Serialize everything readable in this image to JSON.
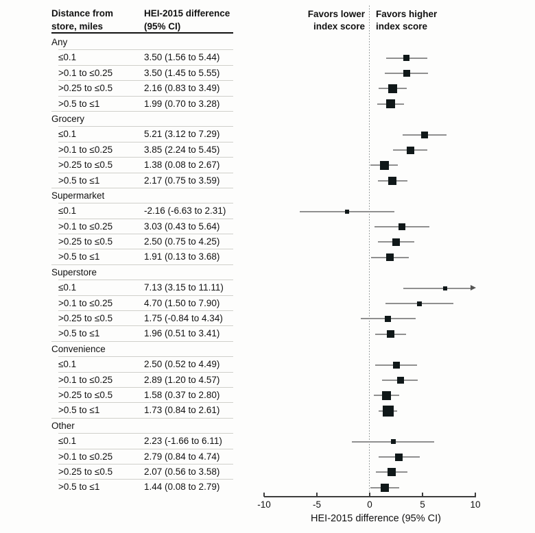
{
  "figure": {
    "col1_header": "Distance from store, miles",
    "col2_header": "HEI-2015 difference (95% CI)",
    "favors_lower": "Favors lower index score",
    "favors_higher": "Favors higher index score",
    "axis_label": "HEI-2015 difference (95% CI)"
  },
  "colors": {
    "marker": "#101819",
    "ci_line": "#8f8f8f",
    "rule_light": "#cfcfca",
    "rule_dark": "#111111",
    "axis": "#3c3c3c",
    "zero_line": "#9aa0a0"
  },
  "chart_data": {
    "type": "scatter",
    "variant": "forest-plot",
    "title": "",
    "xlabel": "HEI-2015 difference (95% CI)",
    "xlim": [
      -10,
      10
    ],
    "xticks": [
      -10,
      -5,
      0,
      5,
      10
    ],
    "grid": false,
    "zero_reference_line": 0,
    "annotations": {
      "left_of_zero": "Favors lower index score",
      "right_of_zero": "Favors higher index score"
    },
    "groups": [
      {
        "label": "Any",
        "rows": [
          {
            "label": "≤0.1",
            "text": "3.50 (1.56 to 5.44)",
            "est": 3.5,
            "lo": 1.56,
            "hi": 5.44,
            "size": 9
          },
          {
            "label": ">0.1 to ≤0.25",
            "text": "3.50 (1.45 to 5.55)",
            "est": 3.5,
            "lo": 1.45,
            "hi": 5.55,
            "size": 10
          },
          {
            "label": ">0.25 to ≤0.5",
            "text": "2.16 (0.83 to 3.49)",
            "est": 2.16,
            "lo": 0.83,
            "hi": 3.49,
            "size": 13
          },
          {
            "label": ">0.5 to ≤1",
            "text": "1.99 (0.70 to 3.28)",
            "est": 1.99,
            "lo": 0.7,
            "hi": 3.28,
            "size": 13
          }
        ]
      },
      {
        "label": "Grocery",
        "rows": [
          {
            "label": "≤0.1",
            "text": "5.21 (3.12 to 7.29)",
            "est": 5.21,
            "lo": 3.12,
            "hi": 7.29,
            "size": 10
          },
          {
            "label": ">0.1 to ≤0.25",
            "text": "3.85 (2.24 to 5.45)",
            "est": 3.85,
            "lo": 2.24,
            "hi": 5.45,
            "size": 11
          },
          {
            "label": ">0.25 to ≤0.5",
            "text": "1.38 (0.08 to 2.67)",
            "est": 1.38,
            "lo": 0.08,
            "hi": 2.67,
            "size": 13
          },
          {
            "label": ">0.5 to ≤1",
            "text": "2.17 (0.75 to 3.59)",
            "est": 2.17,
            "lo": 0.75,
            "hi": 3.59,
            "size": 12
          }
        ]
      },
      {
        "label": "Supermarket",
        "rows": [
          {
            "label": "≤0.1",
            "text": "-2.16 (-6.63 to 2.31)",
            "est": -2.16,
            "lo": -6.63,
            "hi": 2.31,
            "size": 6
          },
          {
            "label": ">0.1 to ≤0.25",
            "text": "3.03 (0.43 to 5.64)",
            "est": 3.03,
            "lo": 0.43,
            "hi": 5.64,
            "size": 10
          },
          {
            "label": ">0.25 to ≤0.5",
            "text": "2.50 (0.75 to 4.25)",
            "est": 2.5,
            "lo": 0.75,
            "hi": 4.25,
            "size": 11
          },
          {
            "label": ">0.5 to ≤1",
            "text": "1.91 (0.13 to 3.68)",
            "est": 1.91,
            "lo": 0.13,
            "hi": 3.68,
            "size": 11
          }
        ]
      },
      {
        "label": "Superstore",
        "rows": [
          {
            "label": "≤0.1",
            "text": "7.13 (3.15 to 11.11)",
            "est": 7.13,
            "lo": 3.15,
            "hi": 11.11,
            "size": 6,
            "clip_hi": true
          },
          {
            "label": ">0.1 to ≤0.25",
            "text": "4.70 (1.50 to 7.90)",
            "est": 4.7,
            "lo": 1.5,
            "hi": 7.9,
            "size": 7
          },
          {
            "label": ">0.25 to ≤0.5",
            "text": "1.75 (-0.84 to 4.34)",
            "est": 1.75,
            "lo": -0.84,
            "hi": 4.34,
            "size": 9
          },
          {
            "label": ">0.5 to ≤1",
            "text": "1.96 (0.51 to 3.41)",
            "est": 1.96,
            "lo": 0.51,
            "hi": 3.41,
            "size": 11
          }
        ]
      },
      {
        "label": "Convenience",
        "rows": [
          {
            "label": "≤0.1",
            "text": "2.50 (0.52 to 4.49)",
            "est": 2.5,
            "lo": 0.52,
            "hi": 4.49,
            "size": 10
          },
          {
            "label": ">0.1 to ≤0.25",
            "text": "2.89 (1.20 to 4.57)",
            "est": 2.89,
            "lo": 1.2,
            "hi": 4.57,
            "size": 10
          },
          {
            "label": ">0.25 to ≤0.5",
            "text": "1.58 (0.37 to 2.80)",
            "est": 1.58,
            "lo": 0.37,
            "hi": 2.8,
            "size": 13
          },
          {
            "label": ">0.5 to ≤1",
            "text": "1.73 (0.84 to 2.61)",
            "est": 1.73,
            "lo": 0.84,
            "hi": 2.61,
            "size": 16
          }
        ]
      },
      {
        "label": "Other",
        "rows": [
          {
            "label": "≤0.1",
            "text": "2.23 (-1.66 to 6.11)",
            "est": 2.23,
            "lo": -1.66,
            "hi": 6.11,
            "size": 7
          },
          {
            "label": ">0.1 to ≤0.25",
            "text": "2.79 (0.84 to 4.74)",
            "est": 2.79,
            "lo": 0.84,
            "hi": 4.74,
            "size": 11
          },
          {
            "label": ">0.25 to ≤0.5",
            "text": "2.07 (0.56 to 3.58)",
            "est": 2.07,
            "lo": 0.56,
            "hi": 3.58,
            "size": 12
          },
          {
            "label": ">0.5 to ≤1",
            "text": "1.44 (0.08 to 2.79)",
            "est": 1.44,
            "lo": 0.08,
            "hi": 2.79,
            "size": 12
          }
        ]
      }
    ]
  }
}
